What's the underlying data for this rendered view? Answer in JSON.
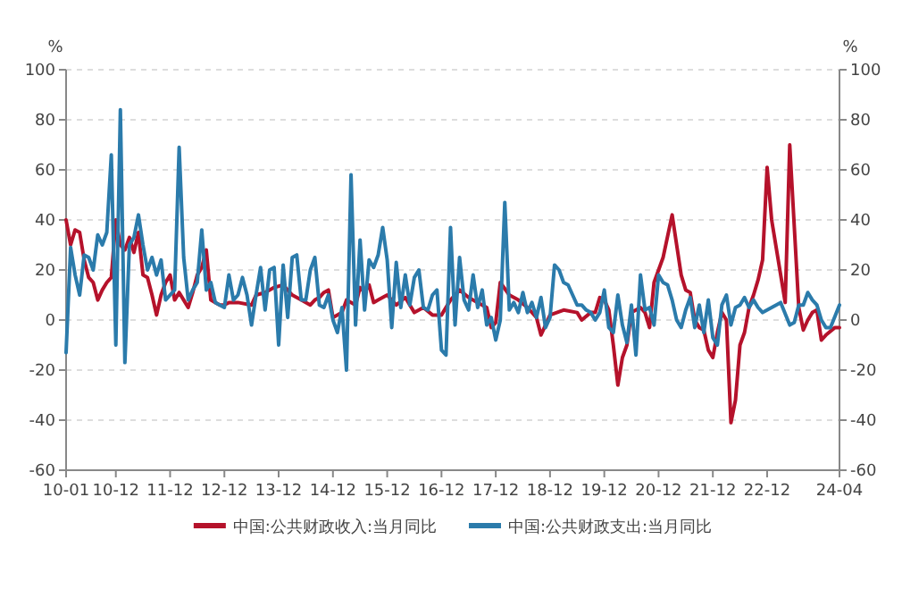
{
  "chart_data": {
    "type": "line",
    "ylabel": "%",
    "y2label": "%",
    "xlim": [
      "2010-01",
      "2024-04"
    ],
    "xticks": [
      {
        "value": "2010-01",
        "label": "10-01"
      },
      {
        "value": "2010-12",
        "label": "10-12"
      },
      {
        "value": "2011-12",
        "label": "11-12"
      },
      {
        "value": "2012-12",
        "label": "12-12"
      },
      {
        "value": "2013-12",
        "label": "13-12"
      },
      {
        "value": "2014-12",
        "label": "14-12"
      },
      {
        "value": "2015-12",
        "label": "15-12"
      },
      {
        "value": "2016-12",
        "label": "16-12"
      },
      {
        "value": "2017-12",
        "label": "17-12"
      },
      {
        "value": "2018-12",
        "label": "18-12"
      },
      {
        "value": "2019-12",
        "label": "19-12"
      },
      {
        "value": "2020-12",
        "label": "20-12"
      },
      {
        "value": "2021-12",
        "label": "21-12"
      },
      {
        "value": "2022-12",
        "label": "22-12"
      },
      {
        "value": "2024-04",
        "label": "24-04"
      }
    ],
    "ylim": [
      -60,
      100
    ],
    "yticks": [
      -60,
      -40,
      -20,
      0,
      20,
      40,
      60,
      80,
      100
    ],
    "y2lim": [
      -60,
      100
    ],
    "y2ticks": [
      -60,
      -40,
      -20,
      0,
      20,
      40,
      60,
      80,
      100
    ],
    "grid": "y",
    "legend": "bottom",
    "line_style": "solid",
    "marker": "none",
    "series": [
      {
        "name": "中国:公共财政收入:当月同比",
        "color": "#b5122b",
        "x": [
          "2010-01",
          "2010-02",
          "2010-03",
          "2010-04",
          "2010-05",
          "2010-06",
          "2010-07",
          "2010-08",
          "2010-09",
          "2010-10",
          "2010-11",
          "2010-12",
          "2011-01",
          "2011-02",
          "2011-03",
          "2011-04",
          "2011-05",
          "2011-06",
          "2011-07",
          "2011-08",
          "2011-09",
          "2011-10",
          "2011-11",
          "2011-12",
          "2012-01",
          "2012-02",
          "2012-03",
          "2012-04",
          "2012-05",
          "2012-06",
          "2012-07",
          "2012-08",
          "2012-09",
          "2012-10",
          "2012-11",
          "2012-12",
          "2013-01",
          "2013-03",
          "2013-06",
          "2013-07",
          "2013-09",
          "2013-11",
          "2014-01",
          "2014-03",
          "2014-05",
          "2014-07",
          "2014-08",
          "2014-09",
          "2014-10",
          "2014-11",
          "2014-12",
          "2015-02",
          "2015-03",
          "2015-05",
          "2015-06",
          "2015-07",
          "2015-08",
          "2015-09",
          "2015-10",
          "2015-11",
          "2015-12",
          "2016-02",
          "2016-04",
          "2016-06",
          "2016-08",
          "2016-10",
          "2016-12",
          "2017-02",
          "2017-04",
          "2017-06",
          "2017-08",
          "2017-10",
          "2017-11",
          "2017-12",
          "2018-01",
          "2018-03",
          "2018-05",
          "2018-07",
          "2018-09",
          "2018-10",
          "2018-11",
          "2018-12",
          "2019-03",
          "2019-06",
          "2019-07",
          "2019-09",
          "2019-10",
          "2019-11",
          "2019-12",
          "2020-01",
          "2020-02",
          "2020-03",
          "2020-04",
          "2020-05",
          "2020-06",
          "2020-07",
          "2020-08",
          "2020-09",
          "2020-10",
          "2020-11",
          "2021-01",
          "2021-03",
          "2021-04",
          "2021-05",
          "2021-06",
          "2021-07",
          "2021-08",
          "2021-09",
          "2021-10",
          "2021-11",
          "2021-12",
          "2022-01",
          "2022-02",
          "2022-03",
          "2022-04",
          "2022-05",
          "2022-06",
          "2022-07",
          "2022-08",
          "2022-09",
          "2022-10",
          "2022-11",
          "2022-12",
          "2023-01",
          "2023-04",
          "2023-05",
          "2023-07",
          "2023-08",
          "2023-09",
          "2023-10",
          "2023-11",
          "2023-12",
          "2024-01",
          "2024-03",
          "2024-04"
        ],
        "values": [
          40,
          30,
          36,
          35,
          24,
          17,
          15,
          8,
          12,
          15,
          17,
          40,
          30,
          28,
          33,
          27,
          35,
          18,
          17,
          10,
          2,
          10,
          15,
          18,
          8,
          11,
          8,
          5,
          11,
          18,
          21,
          28,
          8,
          7,
          6,
          6,
          7,
          7,
          6,
          10,
          11,
          13,
          14,
          10,
          8,
          6,
          8,
          9,
          11,
          12,
          1,
          3,
          8,
          6,
          13,
          11,
          14,
          7,
          8,
          9,
          10,
          6,
          9,
          3,
          5,
          2,
          2,
          8,
          12,
          9,
          7,
          5,
          -3,
          -1,
          15,
          10,
          8,
          5,
          1,
          -6,
          -2,
          2,
          4,
          3,
          0,
          3,
          3,
          9,
          8,
          4,
          -10,
          -26,
          -15,
          -10,
          3,
          4,
          5,
          3,
          -3,
          15,
          25,
          42,
          30,
          18,
          12,
          11,
          0,
          -3,
          -4,
          -12,
          -15,
          -5,
          3,
          0,
          -41,
          -32,
          -10,
          -5,
          5,
          10,
          16,
          24,
          61,
          40,
          7,
          70,
          5,
          -4,
          0,
          3,
          4,
          -8,
          -6,
          -3,
          -3
        ]
      },
      {
        "name": "中国:公共财政支出:当月同比",
        "color": "#2b7bab",
        "x": [
          "2010-01",
          "2010-02",
          "2010-03",
          "2010-04",
          "2010-05",
          "2010-06",
          "2010-07",
          "2010-08",
          "2010-09",
          "2010-10",
          "2010-11",
          "2010-12",
          "2011-01",
          "2011-02",
          "2011-03",
          "2011-04",
          "2011-05",
          "2011-06",
          "2011-07",
          "2011-08",
          "2011-09",
          "2011-10",
          "2011-11",
          "2011-12",
          "2012-01",
          "2012-02",
          "2012-03",
          "2012-04",
          "2012-05",
          "2012-06",
          "2012-07",
          "2012-08",
          "2012-09",
          "2012-10",
          "2012-11",
          "2012-12",
          "2013-01",
          "2013-02",
          "2013-03",
          "2013-04",
          "2013-05",
          "2013-06",
          "2013-07",
          "2013-08",
          "2013-09",
          "2013-10",
          "2013-11",
          "2013-12",
          "2014-01",
          "2014-02",
          "2014-03",
          "2014-04",
          "2014-05",
          "2014-06",
          "2014-07",
          "2014-08",
          "2014-09",
          "2014-10",
          "2014-11",
          "2014-12",
          "2015-01",
          "2015-02",
          "2015-03",
          "2015-04",
          "2015-05",
          "2015-06",
          "2015-07",
          "2015-08",
          "2015-09",
          "2015-10",
          "2015-11",
          "2015-12",
          "2016-01",
          "2016-02",
          "2016-03",
          "2016-04",
          "2016-05",
          "2016-06",
          "2016-07",
          "2016-08",
          "2016-09",
          "2016-10",
          "2016-11",
          "2016-12",
          "2017-01",
          "2017-02",
          "2017-03",
          "2017-04",
          "2017-05",
          "2017-06",
          "2017-07",
          "2017-08",
          "2017-09",
          "2017-10",
          "2017-11",
          "2017-12",
          "2018-01",
          "2018-02",
          "2018-03",
          "2018-04",
          "2018-05",
          "2018-06",
          "2018-07",
          "2018-08",
          "2018-09",
          "2018-10",
          "2018-11",
          "2018-12",
          "2019-01",
          "2019-02",
          "2019-03",
          "2019-04",
          "2019-05",
          "2019-06",
          "2019-07",
          "2019-08",
          "2019-09",
          "2019-10",
          "2019-11",
          "2019-12",
          "2020-01",
          "2020-02",
          "2020-03",
          "2020-04",
          "2020-05",
          "2020-06",
          "2020-07",
          "2020-08",
          "2020-09",
          "2020-10",
          "2020-11",
          "2020-12",
          "2021-01",
          "2021-02",
          "2021-03",
          "2021-04",
          "2021-05",
          "2021-06",
          "2021-07",
          "2021-08",
          "2021-09",
          "2021-10",
          "2021-11",
          "2021-12",
          "2022-01",
          "2022-02",
          "2022-03",
          "2022-04",
          "2022-05",
          "2022-06",
          "2022-07",
          "2022-08",
          "2022-09",
          "2022-10",
          "2022-11",
          "2022-12",
          "2023-03",
          "2023-05",
          "2023-06",
          "2023-07",
          "2023-08",
          "2023-09",
          "2023-10",
          "2023-11",
          "2023-12",
          "2024-01",
          "2024-02",
          "2024-04"
        ],
        "values": [
          -13,
          29,
          18,
          10,
          26,
          25,
          20,
          34,
          30,
          35,
          66,
          -10,
          84,
          -17,
          30,
          33,
          42,
          30,
          20,
          25,
          18,
          24,
          8,
          10,
          12,
          69,
          25,
          8,
          12,
          15,
          36,
          12,
          15,
          7,
          6,
          5,
          18,
          8,
          10,
          17,
          10,
          -2,
          10,
          21,
          4,
          20,
          21,
          -10,
          22,
          1,
          25,
          26,
          8,
          8,
          20,
          25,
          6,
          5,
          10,
          0,
          -5,
          5,
          -20,
          58,
          -2,
          32,
          4,
          24,
          21,
          26,
          37,
          24,
          -3,
          23,
          5,
          18,
          6,
          17,
          20,
          5,
          4,
          10,
          12,
          -12,
          -14,
          37,
          -2,
          25,
          8,
          4,
          18,
          5,
          12,
          -2,
          1,
          -8,
          0,
          47,
          4,
          7,
          3,
          11,
          3,
          7,
          1,
          9,
          -3,
          1,
          22,
          20,
          15,
          14,
          10,
          6,
          6,
          4,
          3,
          0,
          3,
          12,
          -3,
          -5,
          10,
          -2,
          -9,
          6,
          -14,
          18,
          4,
          5,
          -2,
          18,
          15,
          14,
          8,
          0,
          -3,
          4,
          9,
          -3,
          6,
          -5,
          8,
          -7,
          -10,
          6,
          10,
          -2,
          5,
          6,
          9,
          5,
          8,
          5,
          3,
          4,
          7,
          -2,
          -1,
          6,
          6,
          11,
          8,
          6,
          0,
          -3,
          -3,
          6
        ]
      }
    ]
  }
}
